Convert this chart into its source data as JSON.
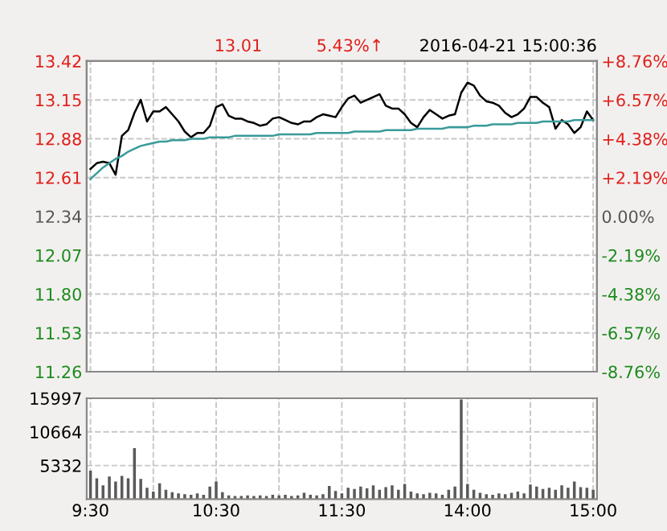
{
  "chart_data": [
    {
      "type": "line",
      "title": "2016-04-21 15:00:36",
      "annotations": [
        "13.01",
        "5.43%↑"
      ],
      "categories": [
        null,
        null,
        null,
        null,
        null,
        null,
        null,
        null,
        null,
        null,
        null,
        null,
        null,
        null,
        null,
        null,
        null,
        null,
        null,
        null,
        null,
        null,
        null,
        null,
        null,
        null,
        null,
        null,
        null,
        null,
        null,
        null,
        null,
        null,
        null,
        null,
        null,
        null,
        null,
        null,
        null,
        null,
        null,
        null,
        null,
        null,
        null,
        null,
        null,
        null,
        null,
        null,
        null,
        null,
        null,
        null,
        null,
        null,
        null,
        null,
        null,
        null,
        null,
        null,
        null,
        null,
        null,
        null,
        null,
        null,
        null,
        null,
        null,
        null,
        null,
        null,
        null,
        null,
        null,
        null,
        null
      ],
      "series": [
        {
          "color": "#000000",
          "values": [
            12.67,
            12.71,
            12.72,
            12.71,
            12.63,
            12.9,
            12.94,
            13.06,
            13.15,
            13.0,
            13.07,
            13.07,
            13.1,
            13.05,
            13.0,
            12.93,
            12.89,
            12.92,
            12.92,
            12.97,
            13.1,
            13.12,
            13.04,
            13.02,
            13.02,
            13.0,
            12.99,
            12.97,
            12.98,
            13.02,
            13.03,
            13.01,
            12.99,
            12.98,
            13.0,
            13.0,
            13.03,
            13.05,
            13.04,
            13.03,
            13.1,
            13.16,
            13.18,
            13.13,
            13.15,
            13.17,
            13.19,
            13.11,
            13.09,
            13.09,
            13.05,
            12.99,
            12.96,
            13.03,
            13.08,
            13.05,
            13.02,
            13.04,
            13.05,
            13.2,
            13.27,
            13.25,
            13.18,
            13.14,
            13.13,
            13.11,
            13.06,
            13.03,
            13.05,
            13.09,
            13.17,
            13.17,
            13.13,
            13.1,
            12.95,
            13.01,
            12.98,
            12.92,
            12.96,
            13.07,
            13.01
          ]
        },
        {
          "color": "#3a9a9a",
          "values": [
            12.6,
            12.64,
            12.68,
            12.71,
            12.74,
            12.76,
            12.79,
            12.81,
            12.83,
            12.84,
            12.85,
            12.86,
            12.86,
            12.87,
            12.87,
            12.87,
            12.88,
            12.88,
            12.88,
            12.89,
            12.89,
            12.89,
            12.89,
            12.9,
            12.9,
            12.9,
            12.9,
            12.9,
            12.9,
            12.9,
            12.91,
            12.91,
            12.91,
            12.91,
            12.91,
            12.91,
            12.92,
            12.92,
            12.92,
            12.92,
            12.92,
            12.92,
            12.93,
            12.93,
            12.93,
            12.93,
            12.93,
            12.94,
            12.94,
            12.94,
            12.94,
            12.94,
            12.95,
            12.95,
            12.95,
            12.95,
            12.95,
            12.96,
            12.96,
            12.96,
            12.96,
            12.97,
            12.97,
            12.97,
            12.98,
            12.98,
            12.98,
            12.98,
            12.99,
            12.99,
            12.99,
            12.99,
            13.0,
            13.0,
            13.0,
            13.0,
            13.0,
            13.01,
            13.01,
            13.01,
            13.01
          ]
        }
      ],
      "ylim": [
        11.26,
        13.42
      ],
      "yticks": [
        11.26,
        11.53,
        {
          "value": 11.8,
          "label": "11.80"
        },
        12.07,
        12.34,
        12.61,
        12.88,
        13.15,
        13.42
      ],
      "y2lim": [
        -8.76,
        8.76
      ],
      "y2ticks": [
        {
          "value": -8.76,
          "label": "-8.76%"
        },
        {
          "value": -6.57,
          "label": "-6.57%"
        },
        {
          "value": -4.38,
          "label": "-4.38%"
        },
        {
          "value": -2.19,
          "label": "-2.19%"
        },
        {
          "value": 0,
          "label": "0.00%"
        },
        {
          "value": 2.19,
          "label": "+2.19%"
        },
        {
          "value": 4.38,
          "label": "+4.38%"
        },
        {
          "value": 6.57,
          "label": "+6.57%"
        },
        {
          "value": 8.76,
          "label": "+8.76%"
        }
      ],
      "tick_labels": "y",
      "grid": true
    },
    {
      "type": "bar",
      "color": "#5a5a5a",
      "categories": [
        "9:30",
        null,
        null,
        null,
        null,
        null,
        null,
        null,
        null,
        null,
        null,
        null,
        null,
        null,
        null,
        null,
        null,
        null,
        null,
        null,
        "10:30",
        null,
        null,
        null,
        null,
        null,
        null,
        null,
        null,
        null,
        null,
        null,
        null,
        null,
        null,
        null,
        null,
        null,
        null,
        null,
        "11:30",
        null,
        null,
        null,
        null,
        null,
        null,
        null,
        null,
        null,
        null,
        null,
        null,
        null,
        null,
        null,
        null,
        null,
        null,
        null,
        "14:00",
        null,
        null,
        null,
        null,
        null,
        null,
        null,
        null,
        null,
        null,
        null,
        null,
        null,
        null,
        null,
        null,
        null,
        null,
        null,
        "15:00"
      ],
      "values": [
        4500,
        3300,
        2200,
        3600,
        2800,
        3700,
        3300,
        8100,
        3200,
        1800,
        1200,
        2500,
        1500,
        1100,
        900,
        800,
        700,
        900,
        700,
        2000,
        2800,
        1100,
        600,
        500,
        500,
        600,
        500,
        600,
        500,
        700,
        600,
        700,
        500,
        600,
        1000,
        700,
        600,
        800,
        2100,
        1300,
        900,
        1800,
        1600,
        2000,
        1700,
        2200,
        1500,
        1900,
        2200,
        1500,
        2400,
        1200,
        900,
        800,
        1000,
        900,
        700,
        1500,
        2000,
        15800,
        2400,
        1500,
        1000,
        800,
        700,
        900,
        800,
        1000,
        1200,
        900,
        2300,
        2000,
        1600,
        1800,
        1500,
        2200,
        1800,
        2800,
        1900,
        1800,
        1500
      ],
      "ylim": [
        0,
        15997
      ],
      "yticks": [
        5332,
        10664,
        15997
      ],
      "grid": true
    }
  ]
}
